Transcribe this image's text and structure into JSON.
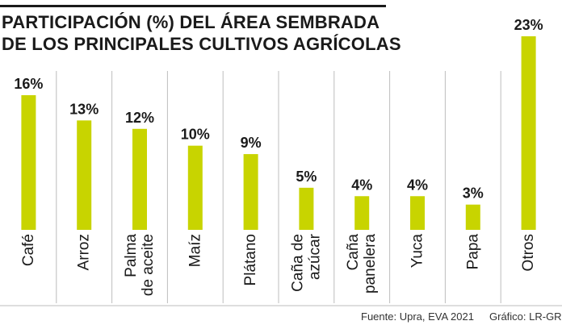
{
  "title_lines": [
    "PARTICIPACIÓN (%) DEL ÁREA SEMBRADA",
    "DE LOS PRINCIPALES CULTIVOS AGRÍCOLAS"
  ],
  "source": "Fuente: Upra, EVA 2021",
  "graphic_credit": "Gráfico: LR-GR",
  "colors": {
    "bar": "#c8d400",
    "grid": "#bdbdbd",
    "text": "#1a1a1a"
  },
  "chart_data": {
    "type": "bar",
    "title": "PARTICIPACIÓN (%) DEL ÁREA SEMBRADA DE LOS PRINCIPALES CULTIVOS AGRÍCOLAS",
    "categories": [
      "Café",
      "Arroz",
      "Palma de aceite",
      "Maíz",
      "Plátano",
      "Caña de azúcar",
      "Caña panelera",
      "Yuca",
      "Papa",
      "Otros"
    ],
    "category_lines": [
      [
        "Café"
      ],
      [
        "Arroz"
      ],
      [
        "Palma",
        "de aceite"
      ],
      [
        "Maíz"
      ],
      [
        "Plátano"
      ],
      [
        "Caña de",
        "azúcar"
      ],
      [
        "Caña",
        "panelera"
      ],
      [
        "Yuca"
      ],
      [
        "Papa"
      ],
      [
        "Otros"
      ]
    ],
    "values": [
      16,
      13,
      12,
      10,
      9,
      5,
      4,
      4,
      3,
      23
    ],
    "value_labels": [
      "16%",
      "13%",
      "12%",
      "10%",
      "9%",
      "5%",
      "4%",
      "4%",
      "3%",
      "23%"
    ],
    "unit": "%",
    "ylim": [
      0,
      23
    ],
    "grid": "vertical separators between columns",
    "legend": "none"
  }
}
